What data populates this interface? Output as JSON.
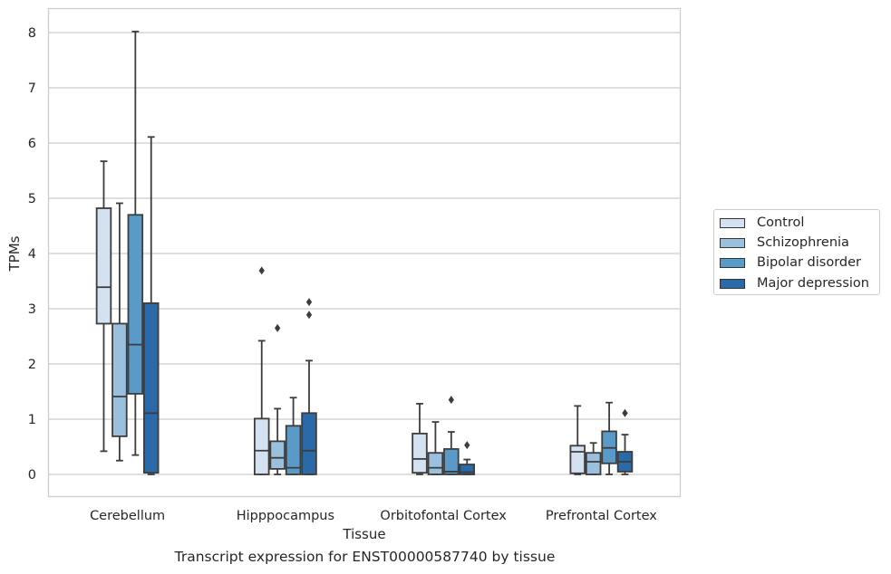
{
  "caption": "Transcript expression for ENST00000587740 by tissue",
  "chart_data": {
    "type": "box",
    "title": "",
    "xlabel": "Tissue",
    "ylabel": "TPMs",
    "ylim": [
      -0.4,
      8.45
    ],
    "yticks": [
      0,
      1,
      2,
      3,
      4,
      5,
      6,
      7,
      8
    ],
    "grid": "y",
    "legend_position": "right",
    "categories": [
      "Cerebellum",
      "Hipppocampus",
      "Orbitofontal Cortex",
      "Prefrontal Cortex"
    ],
    "series": [
      {
        "name": "Control",
        "color": "#d4e1f0",
        "boxes": [
          {
            "whislo": 0.42,
            "q1": 2.73,
            "med": 3.39,
            "q3": 4.82,
            "whishi": 5.67,
            "fliers": []
          },
          {
            "whislo": 0.0,
            "q1": 0.0,
            "med": 0.43,
            "q3": 1.01,
            "whishi": 2.42,
            "fliers": [
              3.69
            ]
          },
          {
            "whislo": 0.0,
            "q1": 0.03,
            "med": 0.28,
            "q3": 0.74,
            "whishi": 1.28,
            "fliers": []
          },
          {
            "whislo": 0.0,
            "q1": 0.02,
            "med": 0.41,
            "q3": 0.52,
            "whishi": 1.24,
            "fliers": []
          }
        ]
      },
      {
        "name": "Schizophrenia",
        "color": "#9ac0dd",
        "boxes": [
          {
            "whislo": 0.25,
            "q1": 0.69,
            "med": 1.41,
            "q3": 2.73,
            "whishi": 4.91,
            "fliers": []
          },
          {
            "whislo": 0.0,
            "q1": 0.1,
            "med": 0.3,
            "q3": 0.6,
            "whishi": 1.19,
            "fliers": [
              2.65
            ]
          },
          {
            "whislo": 0.0,
            "q1": 0.0,
            "med": 0.12,
            "q3": 0.39,
            "whishi": 0.95,
            "fliers": []
          },
          {
            "whislo": 0.0,
            "q1": 0.0,
            "med": 0.23,
            "q3": 0.39,
            "whishi": 0.57,
            "fliers": []
          }
        ]
      },
      {
        "name": "Bipolar disorder",
        "color": "#5a9ac9",
        "boxes": [
          {
            "whislo": 0.35,
            "q1": 1.46,
            "med": 2.35,
            "q3": 4.7,
            "whishi": 8.02,
            "fliers": []
          },
          {
            "whislo": 0.0,
            "q1": 0.0,
            "med": 0.12,
            "q3": 0.88,
            "whishi": 1.39,
            "fliers": []
          },
          {
            "whislo": 0.0,
            "q1": 0.0,
            "med": 0.05,
            "q3": 0.46,
            "whishi": 0.77,
            "fliers": [
              1.35
            ]
          },
          {
            "whislo": 0.0,
            "q1": 0.2,
            "med": 0.48,
            "q3": 0.78,
            "whishi": 1.3,
            "fliers": []
          }
        ]
      },
      {
        "name": "Major depression",
        "color": "#2b6aa9",
        "boxes": [
          {
            "whislo": 0.0,
            "q1": 0.03,
            "med": 1.11,
            "q3": 3.1,
            "whishi": 6.11,
            "fliers": []
          },
          {
            "whislo": 0.0,
            "q1": 0.0,
            "med": 0.43,
            "q3": 1.11,
            "whishi": 2.06,
            "fliers": [
              2.89,
              3.12
            ]
          },
          {
            "whislo": 0.0,
            "q1": 0.0,
            "med": 0.04,
            "q3": 0.18,
            "whishi": 0.27,
            "fliers": [
              0.53
            ]
          },
          {
            "whislo": 0.0,
            "q1": 0.05,
            "med": 0.23,
            "q3": 0.41,
            "whishi": 0.72,
            "fliers": [
              1.11
            ]
          }
        ]
      }
    ]
  }
}
